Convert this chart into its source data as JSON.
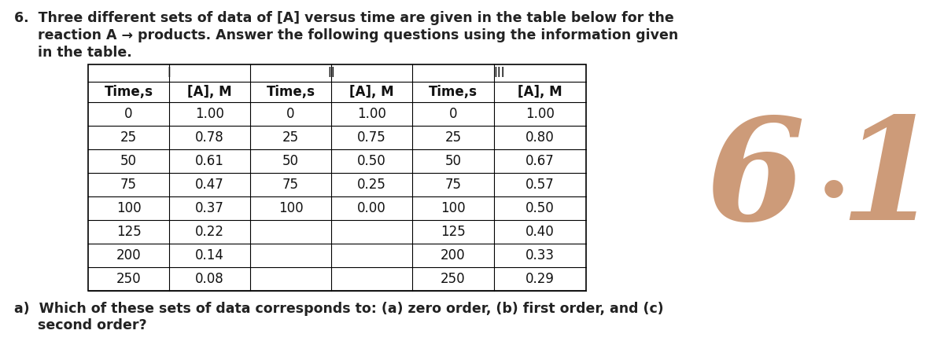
{
  "title_line1": "6.  Three different sets of data of [A] versus time are given in the table below for the",
  "title_line2": "     reaction A → products. Answer the following questions using the information given",
  "title_line3": "     in the table.",
  "question_a": "a)  Which of these sets of data corresponds to: (a) zero order, (b) first order, and (c)\n     second order?",
  "table": {
    "data_I_time": [
      0,
      25,
      50,
      75,
      100,
      125,
      200,
      250
    ],
    "data_I_A": [
      1.0,
      0.78,
      0.61,
      0.47,
      0.37,
      0.22,
      0.14,
      0.08
    ],
    "data_II_time": [
      0,
      25,
      50,
      75,
      100
    ],
    "data_II_A": [
      1.0,
      0.75,
      0.5,
      0.25,
      0.0
    ],
    "data_III_time": [
      0,
      25,
      50,
      75,
      100,
      125,
      200,
      250
    ],
    "data_III_A": [
      1.0,
      0.8,
      0.67,
      0.57,
      0.5,
      0.4,
      0.33,
      0.29
    ]
  },
  "watermark_6": "6",
  "watermark_dot": "·",
  "watermark_1": "1",
  "watermark_color": "#C8906A",
  "bg_color": "#ffffff",
  "text_color": "#222222",
  "table_text_color": "#111111",
  "font_size_body": 12.5,
  "font_size_table": 12.0,
  "font_size_watermark": 130
}
